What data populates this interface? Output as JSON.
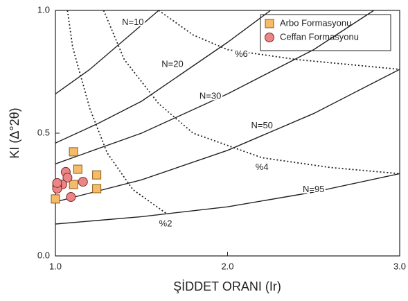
{
  "chart_data": {
    "type": "scatter",
    "x_label": "ŞİDDET ORANI (Ir)",
    "y_label": "KI (Δ°2θ)",
    "xlim": [
      1.0,
      3.0
    ],
    "ylim": [
      0.0,
      1.0
    ],
    "xticks": [
      {
        "value": 1.0,
        "label": "1.0"
      },
      {
        "value": 2.0,
        "label": "2.0"
      },
      {
        "value": 3.0,
        "label": "3.0"
      }
    ],
    "yticks": [
      {
        "value": 0.0,
        "label": "0.0"
      },
      {
        "value": 0.5,
        "label": "0.5"
      },
      {
        "value": 1.0,
        "label": "1.0"
      }
    ],
    "legend": "top-right",
    "series": [
      {
        "name": "Arbo Formasyonu",
        "marker": "square",
        "color": "#f5bb6a",
        "x": [
          1.105,
          1.13,
          1.105,
          1.24,
          1.24,
          1.0
        ],
        "values": [
          0.424,
          0.353,
          0.291,
          0.33,
          0.274,
          0.232
        ]
      },
      {
        "name": "Ceffan Formasyonu",
        "marker": "circle",
        "color": "#ec8585",
        "x": [
          1.06,
          1.07,
          1.04,
          1.01,
          1.01,
          1.01,
          1.16,
          1.09
        ],
        "values": [
          0.342,
          0.319,
          0.291,
          0.285,
          0.274,
          0.297,
          0.302,
          0.24
        ]
      }
    ],
    "curves": [
      {
        "label": "N=10",
        "dash": false,
        "x": [
          1.0,
          1.2,
          1.4,
          1.6
        ],
        "values": [
          0.66,
          0.76,
          0.88,
          1.0
        ]
      },
      {
        "label": "N=20",
        "dash": false,
        "x": [
          1.0,
          1.25,
          1.5,
          1.75,
          2.0,
          2.25
        ],
        "values": [
          0.46,
          0.54,
          0.63,
          0.75,
          0.87,
          1.0
        ]
      },
      {
        "label": "N=30",
        "dash": false,
        "x": [
          1.0,
          1.5,
          2.0,
          2.5,
          2.85
        ],
        "values": [
          0.375,
          0.5,
          0.66,
          0.84,
          1.0
        ]
      },
      {
        "label": "N=50",
        "dash": false,
        "x": [
          1.0,
          1.5,
          2.0,
          2.5,
          3.0
        ],
        "values": [
          0.22,
          0.31,
          0.43,
          0.58,
          0.76
        ]
      },
      {
        "label": "N=95",
        "dash": false,
        "x": [
          1.0,
          1.5,
          2.0,
          2.5,
          3.0
        ],
        "values": [
          0.13,
          0.16,
          0.2,
          0.26,
          0.335
        ]
      },
      {
        "label": "%2",
        "dash": true,
        "x": [
          1.07,
          1.1,
          1.2,
          1.3,
          1.45,
          1.65
        ],
        "values": [
          1.0,
          0.85,
          0.6,
          0.42,
          0.27,
          0.17
        ]
      },
      {
        "label": "%4",
        "dash": true,
        "x": [
          1.28,
          1.4,
          1.6,
          1.8,
          2.2,
          2.6,
          3.0
        ],
        "values": [
          1.0,
          0.8,
          0.62,
          0.5,
          0.4,
          0.36,
          0.335
        ]
      },
      {
        "label": "%6",
        "dash": true,
        "x": [
          1.6,
          1.8,
          2.0,
          2.4,
          3.0
        ],
        "values": [
          1.0,
          0.9,
          0.84,
          0.8,
          0.76
        ]
      }
    ]
  }
}
